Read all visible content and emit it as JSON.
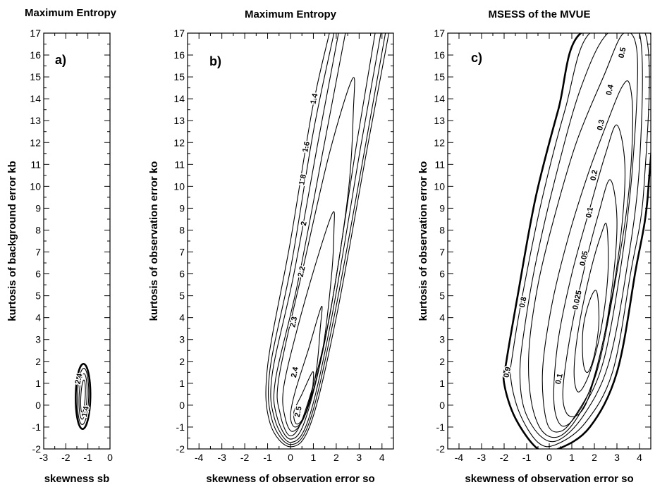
{
  "chart_data": [
    {
      "type": "contour",
      "panel_label": "a)",
      "title": "Maximum Entropy",
      "xlabel": "skewness sb",
      "ylabel": "kurtosis of background error kb",
      "xlim": [
        -3,
        0
      ],
      "ylim": [
        -2,
        17
      ],
      "xticks": [
        "-3",
        "-2",
        "-1",
        "0"
      ],
      "yticks": [
        "-2",
        "-1",
        "0",
        "1",
        "2",
        "3",
        "4",
        "5",
        "6",
        "7",
        "8",
        "9",
        "10",
        "11",
        "12",
        "13",
        "14",
        "15",
        "16",
        "17"
      ],
      "contours": [
        {
          "ring": 0,
          "level": "",
          "cx": -1.22,
          "cy": 0.4,
          "rx": 0.34,
          "ry": 1.55,
          "tilt": -0.38,
          "bold": true
        },
        {
          "ring": 1,
          "level": "",
          "cx": -1.22,
          "cy": 0.4,
          "rx": 0.26,
          "ry": 1.35,
          "tilt": -0.38,
          "bold": false
        },
        {
          "ring": 2,
          "level": "",
          "cx": -1.22,
          "cy": 0.4,
          "rx": 0.18,
          "ry": 1.1,
          "tilt": -0.38,
          "bold": false
        },
        {
          "ring": 3,
          "level": "",
          "cx": -1.22,
          "cy": 0.4,
          "rx": 0.1,
          "ry": 0.8,
          "tilt": -0.38,
          "bold": false
        }
      ],
      "contour_labels": [
        {
          "text": "2.4",
          "x": -1.4,
          "y": 1.2
        },
        {
          "text": "1.4",
          "x": -1.1,
          "y": -0.3
        }
      ]
    },
    {
      "type": "contour",
      "panel_label": "b)",
      "title": "Maximum Entropy",
      "xlabel": "skewness of observation error so",
      "ylabel": "kurtosis of observation error ko",
      "xlim": [
        -4.5,
        4.5
      ],
      "ylim": [
        -2,
        17
      ],
      "xticks": [
        "-4",
        "-3",
        "-2",
        "-1",
        "0",
        "1",
        "2",
        "3",
        "4"
      ],
      "yticks": [
        "-2",
        "-1",
        "0",
        "1",
        "2",
        "3",
        "4",
        "5",
        "6",
        "7",
        "8",
        "9",
        "10",
        "11",
        "12",
        "13",
        "14",
        "15",
        "16",
        "17"
      ],
      "contours": [
        {
          "ring": 0,
          "level": "1.4",
          "open": true,
          "p": [
            [
              1.7,
              17
            ],
            [
              0.95,
              13.5
            ],
            [
              0.0,
              7.5
            ],
            [
              -1.0,
              1.8
            ],
            [
              -0.9,
              -0.8
            ],
            [
              0,
              -1.9
            ],
            [
              0.9,
              -0.8
            ],
            [
              2.0,
              4
            ],
            [
              3.4,
              12
            ],
            [
              4.3,
              17
            ]
          ]
        },
        {
          "ring": 1,
          "level": "1.6",
          "open": true,
          "p": [
            [
              1.9,
              17
            ],
            [
              1.0,
              12.5
            ],
            [
              0.05,
              6.5
            ],
            [
              -0.9,
              1.6
            ],
            [
              -0.8,
              -0.7
            ],
            [
              0,
              -1.8
            ],
            [
              0.85,
              -0.7
            ],
            [
              1.9,
              4
            ],
            [
              3.3,
              12
            ],
            [
              4.15,
              17
            ]
          ]
        },
        {
          "ring": 2,
          "level": "1.8",
          "open": true,
          "p": [
            [
              2.1,
              17
            ],
            [
              1.2,
              12.0
            ],
            [
              0.15,
              6.0
            ],
            [
              -0.8,
              1.4
            ],
            [
              -0.7,
              -0.6
            ],
            [
              0,
              -1.7
            ],
            [
              0.8,
              -0.6
            ],
            [
              1.8,
              4
            ],
            [
              3.1,
              12
            ],
            [
              3.95,
              17
            ]
          ]
        },
        {
          "ring": 3,
          "level": "2",
          "open": true,
          "p": [
            [
              2.4,
              17
            ],
            [
              1.4,
              11.5
            ],
            [
              0.3,
              5.5
            ],
            [
              -0.65,
              1.2
            ],
            [
              -0.6,
              -0.5
            ],
            [
              0,
              -1.55
            ],
            [
              0.7,
              -0.5
            ],
            [
              1.7,
              4
            ],
            [
              2.9,
              12
            ],
            [
              3.7,
              17
            ]
          ]
        },
        {
          "ring": 4,
          "level": "2.2",
          "open": false,
          "p": [
            [
              2.7,
              14.9
            ],
            [
              1.7,
              11.5
            ],
            [
              0.6,
              6.5
            ],
            [
              -0.5,
              1.3
            ],
            [
              -0.45,
              -0.4
            ],
            [
              0,
              -1.4
            ],
            [
              0.6,
              -0.4
            ],
            [
              1.6,
              3.5
            ],
            [
              2.5,
              9.5
            ],
            [
              2.75,
              13.5
            ]
          ]
        },
        {
          "ring": 5,
          "level": "2.3",
          "open": false,
          "p": [
            [
              1.85,
              8.8
            ],
            [
              1.2,
              6.8
            ],
            [
              0.3,
              3.5
            ],
            [
              -0.3,
              0.8
            ],
            [
              -0.25,
              -0.5
            ],
            [
              0.1,
              -1.2
            ],
            [
              0.7,
              -0.3
            ],
            [
              1.4,
              2.5
            ],
            [
              1.8,
              6.0
            ],
            [
              1.9,
              8.0
            ]
          ]
        },
        {
          "ring": 6,
          "level": "2.4",
          "open": false,
          "p": [
            [
              1.35,
              4.5
            ],
            [
              0.8,
              2.6
            ],
            [
              0.2,
              0.6
            ],
            [
              0.0,
              -0.5
            ],
            [
              0.2,
              -1.0
            ],
            [
              0.6,
              -0.5
            ],
            [
              1.1,
              1.4
            ],
            [
              1.3,
              3.5
            ]
          ]
        },
        {
          "ring": 7,
          "level": "2.5",
          "open": false,
          "p": [
            [
              0.95,
              1.5
            ],
            [
              0.5,
              0.5
            ],
            [
              0.15,
              -0.3
            ],
            [
              0.25,
              -0.85
            ],
            [
              0.55,
              -0.6
            ],
            [
              0.9,
              0.4
            ],
            [
              1.0,
              1.2
            ]
          ]
        }
      ],
      "contour_labels": [
        {
          "text": "1.4",
          "x": 1.05,
          "y": 14.0
        },
        {
          "text": "1.6",
          "x": 0.7,
          "y": 11.8
        },
        {
          "text": "1.8",
          "x": 0.55,
          "y": 10.3
        },
        {
          "text": "2",
          "x": 0.6,
          "y": 8.3
        },
        {
          "text": "2.2",
          "x": 0.5,
          "y": 6.1
        },
        {
          "text": "2.3",
          "x": 0.15,
          "y": 3.8
        },
        {
          "text": "2.4",
          "x": 0.2,
          "y": 1.5
        },
        {
          "text": "2.5",
          "x": 0.35,
          "y": -0.3
        }
      ]
    },
    {
      "type": "contour",
      "panel_label": "c)",
      "title": "MSESS of the MVUE",
      "xlabel": "skewness of observation error so",
      "ylabel": "kurtosis of observation error ko",
      "xlim": [
        -4.5,
        4.5
      ],
      "ylim": [
        -2,
        17
      ],
      "xticks": [
        "-4",
        "-3",
        "-2",
        "-1",
        "0",
        "1",
        "2",
        "3",
        "4"
      ],
      "yticks": [
        "-2",
        "-1",
        "0",
        "1",
        "2",
        "3",
        "4",
        "5",
        "6",
        "7",
        "8",
        "9",
        "10",
        "11",
        "12",
        "13",
        "14",
        "15",
        "16",
        "17"
      ],
      "contours": [
        {
          "ring": 0,
          "level": "",
          "open": false,
          "bold": true,
          "p": [
            [
              1.4,
              17
            ],
            [
              4.5,
              17
            ],
            [
              4.4,
              10
            ],
            [
              3.8,
              6.0
            ],
            [
              3.0,
              1.5
            ],
            [
              1.8,
              -1.0
            ],
            [
              0.4,
              -2.0
            ],
            [
              -0.5,
              -2.0
            ],
            [
              -1.5,
              -0.6
            ],
            [
              -2.0,
              1.0
            ],
            [
              -1.9,
              2.0
            ],
            [
              -1.4,
              5.0
            ],
            [
              -0.6,
              9.5
            ],
            [
              0.4,
              13.5
            ]
          ]
        },
        {
          "ring": 1,
          "level": "0.8",
          "open": false,
          "p": [
            [
              1.8,
              17
            ],
            [
              4.25,
              17
            ],
            [
              4.2,
              10
            ],
            [
              3.6,
              6.0
            ],
            [
              2.8,
              1.5
            ],
            [
              1.6,
              -0.8
            ],
            [
              0.3,
              -1.8
            ],
            [
              -0.5,
              -1.7
            ],
            [
              -1.3,
              -0.4
            ],
            [
              -1.7,
              1.2
            ],
            [
              -1.6,
              2.5
            ],
            [
              -1.1,
              5.5
            ],
            [
              -0.3,
              9.5
            ],
            [
              0.7,
              13.5
            ]
          ]
        },
        {
          "ring": 2,
          "level": "0.5",
          "open": false,
          "p": [
            [
              2.6,
              17
            ],
            [
              4.0,
              17
            ],
            [
              4.0,
              11
            ],
            [
              3.4,
              6.0
            ],
            [
              2.6,
              1.8
            ],
            [
              1.5,
              -0.5
            ],
            [
              0.4,
              -1.6
            ],
            [
              -0.4,
              -1.4
            ],
            [
              -1.1,
              -0.2
            ],
            [
              -1.3,
              1.5
            ],
            [
              -1.1,
              3.5
            ],
            [
              -0.6,
              6.5
            ],
            [
              0.3,
              10.5
            ],
            [
              1.4,
              14.5
            ]
          ]
        },
        {
          "ring": 3,
          "level": "0.4",
          "open": false,
          "p": [
            [
              3.3,
              17
            ],
            [
              3.9,
              16
            ],
            [
              3.7,
              11
            ],
            [
              3.2,
              6.5
            ],
            [
              2.4,
              2.0
            ],
            [
              1.4,
              -0.3
            ],
            [
              0.5,
              -1.4
            ],
            [
              -0.3,
              -1.2
            ],
            [
              -0.8,
              0.2
            ],
            [
              -0.9,
              2.5
            ],
            [
              -0.5,
              5.5
            ],
            [
              0.2,
              8.5
            ],
            [
              1.2,
              12.0
            ],
            [
              2.4,
              15.0
            ]
          ]
        },
        {
          "ring": 4,
          "level": "0.3",
          "open": false,
          "p": [
            [
              3.55,
              14.7
            ],
            [
              3.7,
              13
            ],
            [
              3.5,
              9.5
            ],
            [
              2.9,
              5.5
            ],
            [
              2.1,
              1.5
            ],
            [
              1.2,
              -0.4
            ],
            [
              0.5,
              -1.2
            ],
            [
              -0.1,
              -0.8
            ],
            [
              -0.3,
              1.5
            ],
            [
              0.1,
              4.5
            ],
            [
              0.8,
              7.5
            ],
            [
              1.7,
              10.5
            ],
            [
              2.6,
              13.0
            ],
            [
              3.2,
              14.5
            ]
          ]
        },
        {
          "ring": 5,
          "level": "0.2",
          "open": false,
          "p": [
            [
              3.0,
              12.8
            ],
            [
              3.35,
              11
            ],
            [
              3.2,
              8.0
            ],
            [
              2.7,
              4.5
            ],
            [
              1.9,
              1.0
            ],
            [
              1.1,
              -0.6
            ],
            [
              0.5,
              -0.9
            ],
            [
              0.2,
              0.3
            ],
            [
              0.4,
              3.0
            ],
            [
              1.0,
              6.0
            ],
            [
              1.8,
              9.0
            ],
            [
              2.5,
              11.5
            ]
          ]
        },
        {
          "ring": 6,
          "level": "0.1",
          "open": false,
          "p": [
            [
              2.7,
              10.3
            ],
            [
              3.0,
              8.5
            ],
            [
              2.8,
              5.5
            ],
            [
              2.3,
              2.5
            ],
            [
              1.6,
              0.0
            ],
            [
              0.9,
              -0.5
            ],
            [
              0.6,
              0.5
            ],
            [
              0.9,
              3.0
            ],
            [
              1.5,
              6.0
            ],
            [
              2.2,
              8.8
            ]
          ]
        },
        {
          "ring": 7,
          "level": "0.05",
          "open": false,
          "p": [
            [
              2.55,
              8.2
            ],
            [
              2.6,
              6.0
            ],
            [
              2.3,
              3.5
            ],
            [
              1.8,
              1.5
            ],
            [
              1.3,
              0.6
            ],
            [
              1.1,
              1.5
            ],
            [
              1.3,
              3.5
            ],
            [
              1.8,
              6.0
            ],
            [
              2.3,
              7.8
            ]
          ]
        },
        {
          "ring": 8,
          "level": "0.025",
          "open": false,
          "p": [
            [
              2.1,
              5.2
            ],
            [
              2.2,
              3.8
            ],
            [
              2.0,
              2.3
            ],
            [
              1.7,
              1.5
            ],
            [
              1.5,
              2.0
            ],
            [
              1.5,
              3.5
            ],
            [
              1.8,
              4.8
            ]
          ]
        }
      ],
      "contour_labels": [
        {
          "text": "0.5",
          "x": 3.25,
          "y": 16.1
        },
        {
          "text": "0.4",
          "x": 2.7,
          "y": 14.4
        },
        {
          "text": "0.3",
          "x": 2.3,
          "y": 12.8
        },
        {
          "text": "0.2",
          "x": 2.0,
          "y": 10.5
        },
        {
          "text": "0.1",
          "x": 1.8,
          "y": 8.8
        },
        {
          "text": "0.05",
          "x": 1.55,
          "y": 6.7
        },
        {
          "text": "0.025",
          "x": 1.25,
          "y": 4.8
        },
        {
          "text": "0.8",
          "x": -1.15,
          "y": 4.7
        },
        {
          "text": "0.9",
          "x": -1.85,
          "y": 1.5
        },
        {
          "text": "0.1",
          "x": 0.45,
          "y": 1.2
        }
      ]
    }
  ]
}
